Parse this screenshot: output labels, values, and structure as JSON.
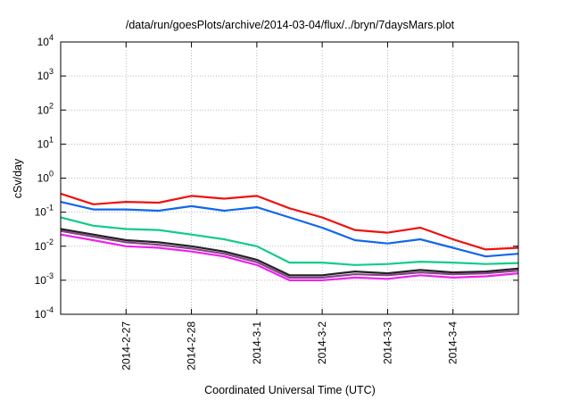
{
  "chart_data": {
    "type": "line",
    "title": "/data/run/goesPlots/archive/2014-03-04/flux/../bryn/7daysMars.plot",
    "xlabel": "Coordinated Universal Time (UTC)",
    "ylabel": "cSv/day",
    "y_scale": "log",
    "ylim": [
      0.0001,
      10000
    ],
    "y_ticks": [
      {
        "mantissa": "10",
        "exp": "-4",
        "value": 0.0001
      },
      {
        "mantissa": "10",
        "exp": "-3",
        "value": 0.001
      },
      {
        "mantissa": "10",
        "exp": "-2",
        "value": 0.01
      },
      {
        "mantissa": "10",
        "exp": "-1",
        "value": 0.1
      },
      {
        "mantissa": "10",
        "exp": "0",
        "value": 1
      },
      {
        "mantissa": "10",
        "exp": "1",
        "value": 10
      },
      {
        "mantissa": "10",
        "exp": "2",
        "value": 100
      },
      {
        "mantissa": "10",
        "exp": "3",
        "value": 1000
      },
      {
        "mantissa": "10",
        "exp": "4",
        "value": 10000
      }
    ],
    "xlim": [
      "2014-02-26T00:00",
      "2014-03-05T00:00"
    ],
    "x_ticks": [
      {
        "label": "2014-2-27",
        "value": "2014-02-27T00:00"
      },
      {
        "label": "2014-2-28",
        "value": "2014-02-28T00:00"
      },
      {
        "label": "2014-3-1",
        "value": "2014-03-01T00:00"
      },
      {
        "label": "2014-3-2",
        "value": "2014-03-02T00:00"
      },
      {
        "label": "2014-3-3",
        "value": "2014-03-03T00:00"
      },
      {
        "label": "2014-3-4",
        "value": "2014-03-04T00:00"
      }
    ],
    "grid": true,
    "legend": "none",
    "x": [
      "2014-02-26T00:00",
      "2014-02-26T12:00",
      "2014-02-27T00:00",
      "2014-02-27T12:00",
      "2014-02-28T00:00",
      "2014-02-28T12:00",
      "2014-03-01T00:00",
      "2014-03-01T12:00",
      "2014-03-02T00:00",
      "2014-03-02T12:00",
      "2014-03-03T00:00",
      "2014-03-03T12:00",
      "2014-03-04T00:00",
      "2014-03-04T12:00",
      "2014-03-04T23:59"
    ],
    "series": [
      {
        "color": "#ee1111",
        "values": [
          0.35,
          0.17,
          0.2,
          0.19,
          0.3,
          0.25,
          0.3,
          0.13,
          0.07,
          0.03,
          0.025,
          0.035,
          0.016,
          0.008,
          0.009
        ]
      },
      {
        "color": "#1166ee",
        "values": [
          0.2,
          0.12,
          0.12,
          0.11,
          0.15,
          0.11,
          0.14,
          0.07,
          0.035,
          0.015,
          0.012,
          0.016,
          0.009,
          0.005,
          0.006
        ]
      },
      {
        "color": "#11cc88",
        "values": [
          0.07,
          0.04,
          0.032,
          0.03,
          0.022,
          0.016,
          0.01,
          0.0033,
          0.0033,
          0.0028,
          0.003,
          0.0035,
          0.0033,
          0.003,
          0.0032
        ]
      },
      {
        "color": "#222222",
        "values": [
          0.032,
          0.022,
          0.015,
          0.013,
          0.01,
          0.007,
          0.004,
          0.0014,
          0.0014,
          0.0018,
          0.0016,
          0.002,
          0.0017,
          0.0018,
          0.0022
        ]
      },
      {
        "color": "#884488",
        "values": [
          0.028,
          0.019,
          0.013,
          0.011,
          0.0085,
          0.006,
          0.0034,
          0.0012,
          0.0012,
          0.0015,
          0.0014,
          0.0017,
          0.0015,
          0.0016,
          0.0019
        ]
      },
      {
        "color": "#ee22ee",
        "values": [
          0.022,
          0.015,
          0.01,
          0.009,
          0.007,
          0.005,
          0.0028,
          0.001,
          0.001,
          0.0012,
          0.0011,
          0.0014,
          0.0012,
          0.0013,
          0.0016
        ]
      }
    ]
  }
}
